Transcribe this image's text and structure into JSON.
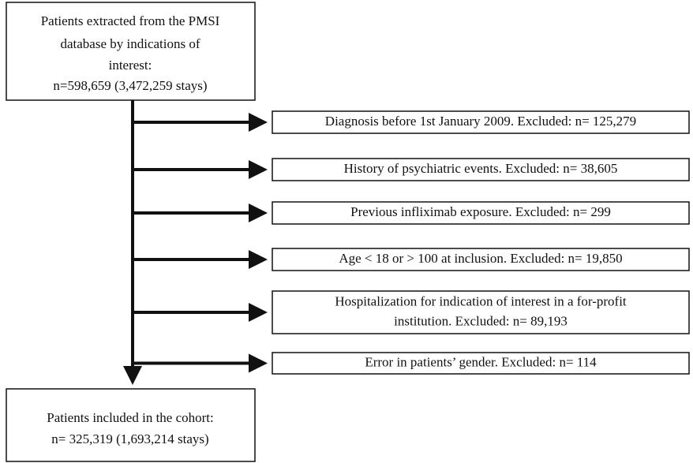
{
  "top_box": {
    "lines": [
      "Patients extracted from the PMSI",
      "database by indications of",
      "interest:",
      "n=598,659 (3,472,259 stays)"
    ]
  },
  "exclusions": [
    {
      "lines": [
        "Diagnosis before 1st January 2009. Excluded: n= 125,279"
      ]
    },
    {
      "lines": [
        "History of psychiatric events. Excluded: n= 38,605"
      ]
    },
    {
      "lines": [
        "Previous infliximab exposure. Excluded: n= 299"
      ]
    },
    {
      "lines": [
        "Age < 18 or > 100 at inclusion. Excluded: n= 19,850"
      ]
    },
    {
      "lines": [
        "Hospitalization for indication of interest in a for-profit",
        "institution. Excluded: n= 89,193"
      ]
    },
    {
      "lines": [
        "Error in patients’ gender. Excluded: n= 114"
      ]
    }
  ],
  "bottom_box": {
    "lines": [
      "Patients included in the cohort:",
      "n= 325,319 (1,693,214 stays)"
    ]
  }
}
